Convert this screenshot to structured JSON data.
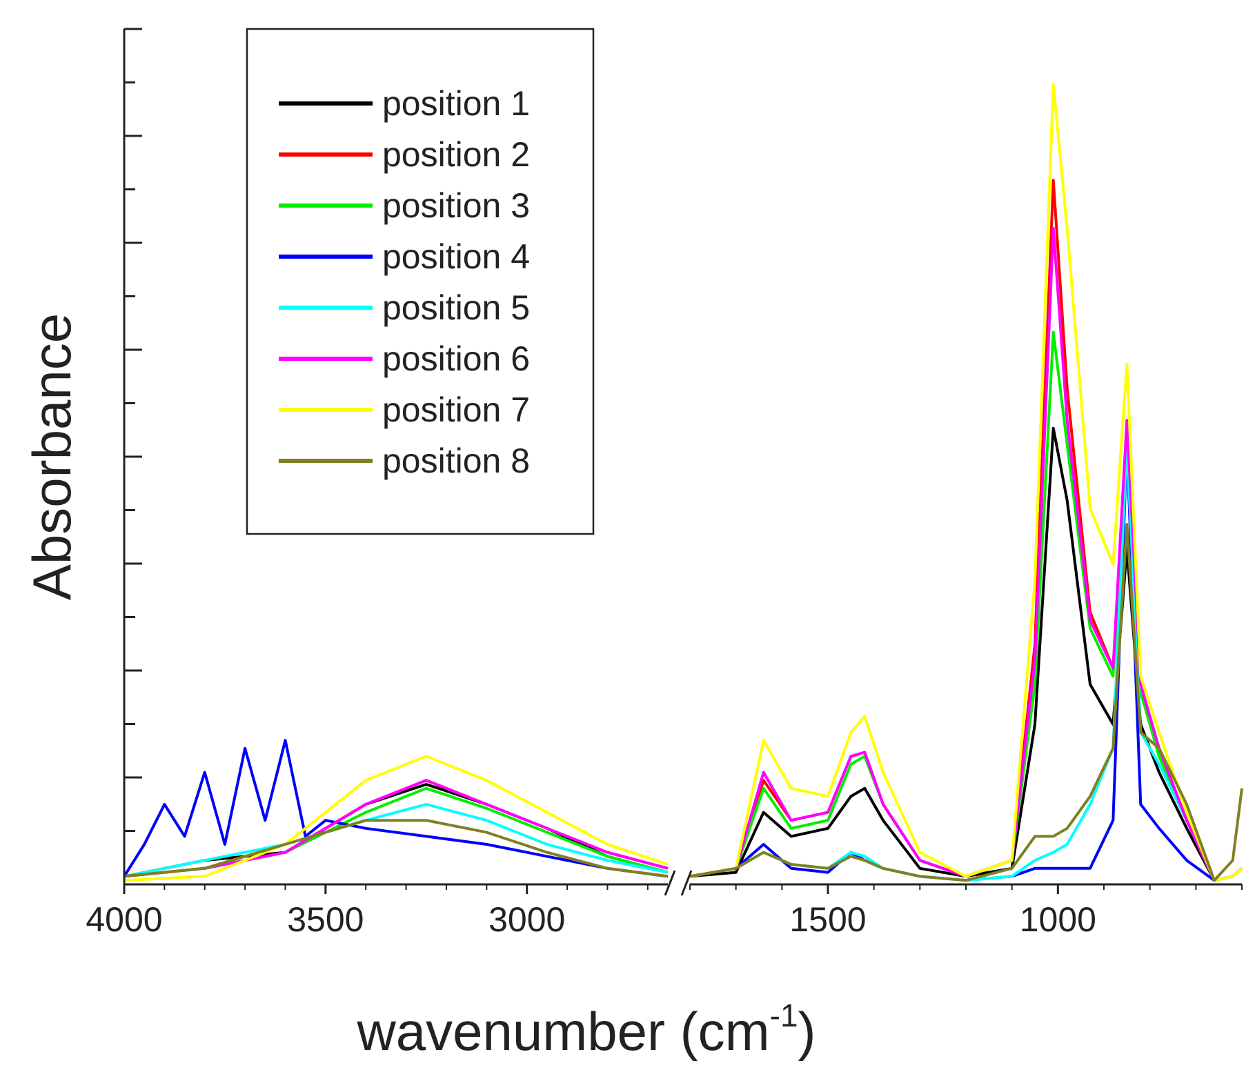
{
  "chart_data": {
    "type": "line",
    "title": "",
    "xlabel": "wavenumber (cm",
    "xlabel_sup": "-1",
    "xlabel_end": ")",
    "ylabel": "Absorbance",
    "x_axis_broken": true,
    "x_segments": [
      {
        "xlim": [
          4000,
          2650
        ],
        "ticks": [
          4000,
          3500,
          3000
        ],
        "tick_labels": [
          "4000",
          "3500",
          "3000"
        ]
      },
      {
        "xlim": [
          1800,
          600
        ],
        "ticks": [
          1500,
          1000
        ],
        "tick_labels": [
          "1500",
          "1000"
        ]
      }
    ],
    "ylim": [
      0,
      1.0
    ],
    "y_tick_labels": "none",
    "legend_position": "top-left",
    "legend": [
      "position 1",
      "position 2",
      "position 3",
      "position 4",
      "position 5",
      "position 6",
      "position 7",
      "position 8"
    ],
    "series": [
      {
        "name": "position 1",
        "color": "#000000",
        "seg1": {
          "x": [
            4000,
            3800,
            3600,
            3400,
            3250,
            3100,
            2950,
            2800,
            2650
          ],
          "y": [
            0.01,
            0.03,
            0.04,
            0.1,
            0.125,
            0.1,
            0.07,
            0.035,
            0.015
          ]
        },
        "seg2": {
          "x": [
            1800,
            1700,
            1640,
            1580,
            1500,
            1450,
            1420,
            1380,
            1300,
            1200,
            1100,
            1050,
            1010,
            980,
            930,
            880,
            850,
            820,
            780,
            720,
            660,
            620,
            600
          ],
          "y": [
            0.01,
            0.015,
            0.09,
            0.06,
            0.07,
            0.11,
            0.12,
            0.08,
            0.02,
            0.01,
            0.02,
            0.2,
            0.57,
            0.48,
            0.25,
            0.2,
            0.42,
            0.2,
            0.14,
            0.07,
            0.005,
            0.01,
            0.02
          ]
        }
      },
      {
        "name": "position 2",
        "color": "#ff0000",
        "seg1": {
          "x": [
            4000,
            3800,
            3600,
            3400,
            3250,
            3100,
            2950,
            2800,
            2650
          ],
          "y": [
            0.01,
            0.02,
            0.04,
            0.1,
            0.13,
            0.1,
            0.07,
            0.04,
            0.02
          ]
        },
        "seg2": {
          "x": [
            1800,
            1700,
            1640,
            1580,
            1500,
            1450,
            1420,
            1380,
            1300,
            1200,
            1100,
            1050,
            1010,
            980,
            930,
            880,
            850,
            820,
            780,
            720,
            660,
            620,
            600
          ],
          "y": [
            0.01,
            0.02,
            0.13,
            0.08,
            0.09,
            0.16,
            0.165,
            0.1,
            0.03,
            0.01,
            0.03,
            0.3,
            0.88,
            0.62,
            0.34,
            0.27,
            0.56,
            0.24,
            0.17,
            0.08,
            0.005,
            0.01,
            0.02
          ]
        }
      },
      {
        "name": "position 3",
        "color": "#00ee00",
        "seg1": {
          "x": [
            4000,
            3800,
            3600,
            3400,
            3250,
            3100,
            2950,
            2800,
            2650
          ],
          "y": [
            0.01,
            0.02,
            0.04,
            0.09,
            0.12,
            0.095,
            0.065,
            0.035,
            0.015
          ]
        },
        "seg2": {
          "x": [
            1800,
            1700,
            1640,
            1580,
            1500,
            1450,
            1420,
            1380,
            1300,
            1200,
            1100,
            1050,
            1010,
            980,
            930,
            880,
            850,
            820,
            780,
            720,
            660,
            620,
            600
          ],
          "y": [
            0.01,
            0.02,
            0.12,
            0.07,
            0.08,
            0.15,
            0.16,
            0.1,
            0.03,
            0.01,
            0.03,
            0.25,
            0.69,
            0.55,
            0.32,
            0.26,
            0.55,
            0.24,
            0.16,
            0.08,
            0.005,
            0.01,
            0.02
          ]
        }
      },
      {
        "name": "position 4",
        "color": "#0000ff",
        "seg1": {
          "x": [
            4000,
            3950,
            3900,
            3850,
            3800,
            3750,
            3700,
            3650,
            3600,
            3550,
            3500,
            3400,
            3250,
            3100,
            2950,
            2800,
            2650
          ],
          "y": [
            0.01,
            0.05,
            0.1,
            0.06,
            0.14,
            0.05,
            0.17,
            0.08,
            0.18,
            0.06,
            0.08,
            0.07,
            0.06,
            0.05,
            0.035,
            0.02,
            0.01
          ]
        },
        "seg2": {
          "x": [
            1800,
            1700,
            1640,
            1580,
            1500,
            1450,
            1420,
            1380,
            1300,
            1200,
            1100,
            1050,
            1010,
            980,
            930,
            880,
            850,
            820,
            780,
            720,
            660,
            620,
            600
          ],
          "y": [
            0.01,
            0.02,
            0.05,
            0.02,
            0.015,
            0.04,
            0.03,
            0.02,
            0.01,
            0.005,
            0.01,
            0.02,
            0.02,
            0.02,
            0.02,
            0.08,
            0.55,
            0.1,
            0.07,
            0.03,
            0.005,
            0.01,
            0.02
          ]
        }
      },
      {
        "name": "position 5",
        "color": "#00ffff",
        "seg1": {
          "x": [
            4000,
            3800,
            3600,
            3400,
            3250,
            3100,
            2950,
            2800,
            2650
          ],
          "y": [
            0.01,
            0.03,
            0.05,
            0.08,
            0.1,
            0.08,
            0.05,
            0.03,
            0.015
          ]
        },
        "seg2": {
          "x": [
            1800,
            1700,
            1640,
            1580,
            1500,
            1450,
            1420,
            1380,
            1300,
            1200,
            1100,
            1050,
            1010,
            980,
            930,
            880,
            850,
            820,
            780,
            720,
            660,
            620,
            600
          ],
          "y": [
            0.01,
            0.02,
            0.04,
            0.025,
            0.02,
            0.04,
            0.035,
            0.02,
            0.01,
            0.005,
            0.01,
            0.03,
            0.04,
            0.05,
            0.1,
            0.17,
            0.55,
            0.19,
            0.15,
            0.08,
            0.005,
            0.01,
            0.02
          ]
        }
      },
      {
        "name": "position 6",
        "color": "#ff00ff",
        "seg1": {
          "x": [
            4000,
            3800,
            3600,
            3400,
            3250,
            3100,
            2950,
            2800,
            2650
          ],
          "y": [
            0.01,
            0.02,
            0.04,
            0.1,
            0.13,
            0.1,
            0.07,
            0.04,
            0.02
          ]
        },
        "seg2": {
          "x": [
            1800,
            1700,
            1640,
            1580,
            1500,
            1450,
            1420,
            1380,
            1300,
            1200,
            1100,
            1050,
            1010,
            980,
            930,
            880,
            850,
            820,
            780,
            720,
            660,
            620,
            600
          ],
          "y": [
            0.01,
            0.02,
            0.14,
            0.08,
            0.09,
            0.16,
            0.165,
            0.1,
            0.03,
            0.01,
            0.03,
            0.28,
            0.82,
            0.58,
            0.33,
            0.27,
            0.58,
            0.25,
            0.17,
            0.08,
            0.005,
            0.01,
            0.02
          ]
        }
      },
      {
        "name": "position 7",
        "color": "#ffff00",
        "seg1": {
          "x": [
            4000,
            3800,
            3600,
            3400,
            3250,
            3100,
            2950,
            2800,
            2650
          ],
          "y": [
            0.005,
            0.01,
            0.05,
            0.13,
            0.16,
            0.13,
            0.09,
            0.05,
            0.025
          ]
        },
        "seg2": {
          "x": [
            1800,
            1700,
            1640,
            1580,
            1500,
            1450,
            1420,
            1380,
            1300,
            1200,
            1100,
            1050,
            1010,
            980,
            930,
            880,
            850,
            820,
            780,
            720,
            660,
            620,
            600
          ],
          "y": [
            0.01,
            0.02,
            0.18,
            0.12,
            0.11,
            0.19,
            0.21,
            0.14,
            0.04,
            0.01,
            0.03,
            0.38,
            1.0,
            0.82,
            0.47,
            0.4,
            0.65,
            0.26,
            0.19,
            0.09,
            0.005,
            0.01,
            0.02
          ]
        }
      },
      {
        "name": "position 8",
        "color": "#808020",
        "seg1": {
          "x": [
            4000,
            3800,
            3600,
            3400,
            3250,
            3100,
            2950,
            2800,
            2650
          ],
          "y": [
            0.01,
            0.02,
            0.05,
            0.08,
            0.08,
            0.065,
            0.04,
            0.02,
            0.01
          ]
        },
        "seg2": {
          "x": [
            1800,
            1700,
            1640,
            1580,
            1500,
            1450,
            1420,
            1380,
            1300,
            1200,
            1100,
            1050,
            1010,
            980,
            930,
            880,
            850,
            820,
            780,
            720,
            660,
            620,
            600
          ],
          "y": [
            0.01,
            0.02,
            0.04,
            0.025,
            0.02,
            0.035,
            0.03,
            0.02,
            0.01,
            0.005,
            0.02,
            0.06,
            0.06,
            0.07,
            0.11,
            0.17,
            0.45,
            0.19,
            0.17,
            0.1,
            0.005,
            0.03,
            0.12
          ]
        }
      }
    ]
  }
}
